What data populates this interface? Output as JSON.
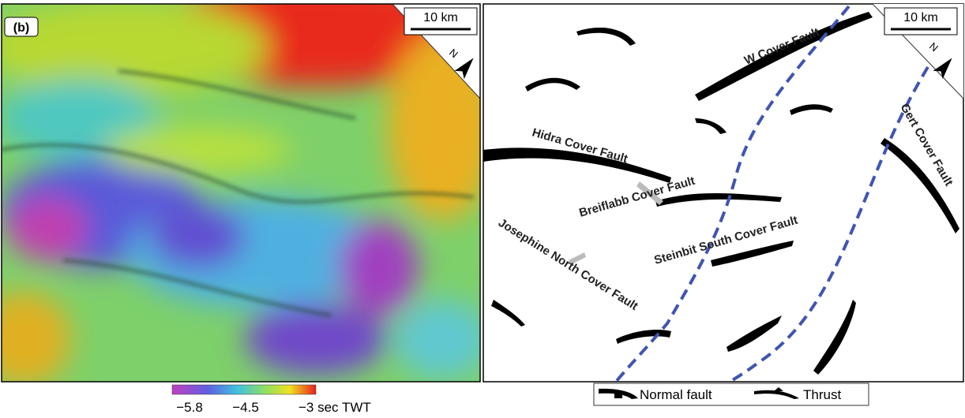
{
  "left_panel": {
    "label": "(b)",
    "scale": "10 km",
    "north": "N"
  },
  "right_panel": {
    "scale": "10 km",
    "north": "N",
    "faults": [
      "W Cover Fault",
      "Hidra Cover Fault",
      "Breiflabb Cover Fault",
      "Josephine North Cover Fault",
      "Steinbit South Cover Fault",
      "Gert Cover Fault"
    ]
  },
  "colorbar": {
    "labels": [
      "−5.8",
      "−4.5",
      "−3 sec TWT"
    ]
  },
  "legend": {
    "items": [
      "Normal fault",
      "Thrust"
    ]
  }
}
